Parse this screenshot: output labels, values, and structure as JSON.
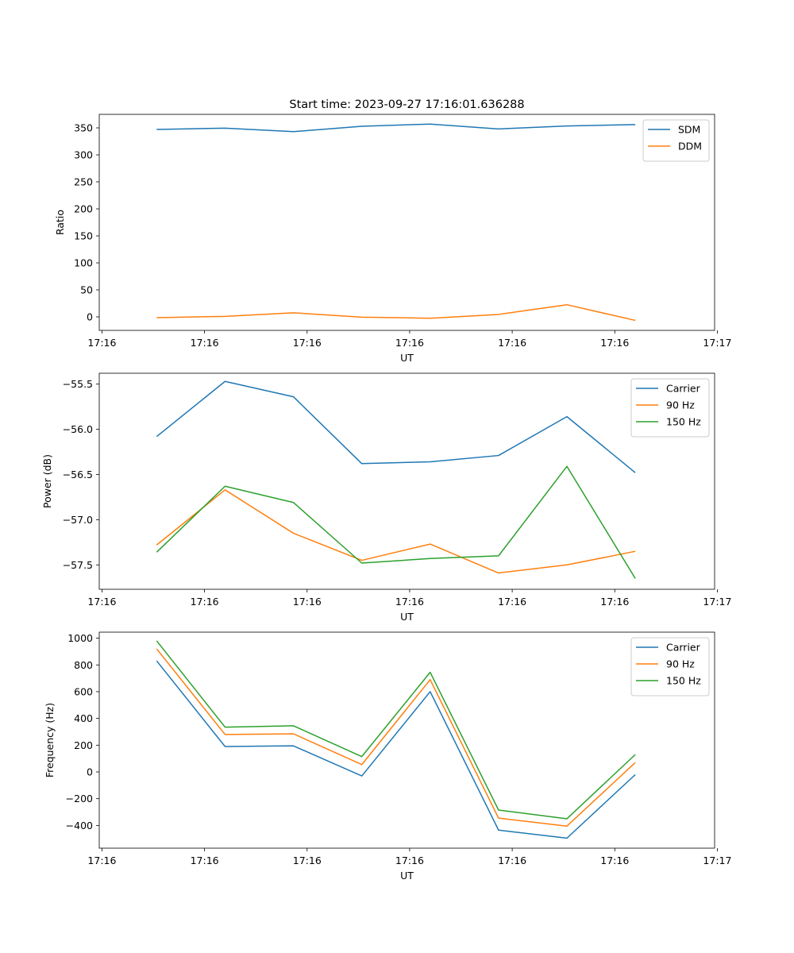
{
  "figure": {
    "title": "Start time: 2023-09-27 17:16:01.636288"
  },
  "colors": {
    "blue": "#1f77b4",
    "orange": "#ff7f0e",
    "green": "#2ca02c"
  },
  "chart_data": [
    {
      "type": "line",
      "title": "Start time: 2023-09-27 17:16:01.636288",
      "xlabel": "UT",
      "ylabel": "Ratio",
      "x": [
        1,
        2,
        3,
        4,
        5,
        6,
        7,
        8
      ],
      "xlim": [
        0.16,
        9.16
      ],
      "xticks": [
        0.2,
        1.7,
        3.2,
        4.7,
        6.2,
        7.7,
        9.2
      ],
      "xtick_labels": [
        "17:16",
        "17:16",
        "17:16",
        "17:16",
        "17:16",
        "17:16",
        "17:17"
      ],
      "ylim": [
        -25,
        375
      ],
      "yticks": [
        0,
        50,
        100,
        150,
        200,
        250,
        300,
        350
      ],
      "legend": "top-right",
      "series": [
        {
          "name": "SDM",
          "color": "#1f77b4",
          "values": [
            347,
            349.5,
            343,
            353,
            357,
            348,
            353.5,
            356
          ]
        },
        {
          "name": "DDM",
          "color": "#ff7f0e",
          "values": [
            -1.5,
            1,
            7.5,
            -0.5,
            -2.5,
            4.5,
            22.5,
            -6.5
          ]
        }
      ]
    },
    {
      "type": "line",
      "title": "",
      "xlabel": "UT",
      "ylabel": "Power (dB)",
      "x": [
        1,
        2,
        3,
        4,
        5,
        6,
        7,
        8
      ],
      "xlim": [
        0.16,
        9.16
      ],
      "xticks": [
        0.2,
        1.7,
        3.2,
        4.7,
        6.2,
        7.7,
        9.2
      ],
      "xtick_labels": [
        "17:16",
        "17:16",
        "17:16",
        "17:16",
        "17:16",
        "17:16",
        "17:17"
      ],
      "ylim": [
        -57.77,
        -55.38
      ],
      "yticks": [
        -57.5,
        -57.0,
        -56.5,
        -56.0,
        -55.5
      ],
      "ytick_labels": [
        "−57.5",
        "−57.0",
        "−56.5",
        "−56.0",
        "−55.5"
      ],
      "legend": "top-right",
      "series": [
        {
          "name": "Carrier",
          "color": "#1f77b4",
          "values": [
            -56.08,
            -55.47,
            -55.64,
            -56.38,
            -56.36,
            -56.29,
            -55.86,
            -56.48
          ]
        },
        {
          "name": "90 Hz",
          "color": "#ff7f0e",
          "values": [
            -57.28,
            -56.67,
            -57.15,
            -57.45,
            -57.27,
            -57.59,
            -57.5,
            -57.35
          ]
        },
        {
          "name": "150 Hz",
          "color": "#2ca02c",
          "values": [
            -57.36,
            -56.63,
            -56.81,
            -57.48,
            -57.43,
            -57.4,
            -56.41,
            -57.65
          ]
        }
      ]
    },
    {
      "type": "line",
      "title": "",
      "xlabel": "UT",
      "ylabel": "Frequency (Hz)",
      "x": [
        1,
        2,
        3,
        4,
        5,
        6,
        7,
        8
      ],
      "xlim": [
        0.16,
        9.16
      ],
      "xticks": [
        0.2,
        1.7,
        3.2,
        4.7,
        6.2,
        7.7,
        9.2
      ],
      "xtick_labels": [
        "17:16",
        "17:16",
        "17:16",
        "17:16",
        "17:16",
        "17:16",
        "17:17"
      ],
      "ylim": [
        -570,
        1045
      ],
      "yticks": [
        -400,
        -200,
        0,
        200,
        400,
        600,
        800,
        1000
      ],
      "ytick_labels": [
        "−400",
        "−200",
        "0",
        "200",
        "400",
        "600",
        "800",
        "1000"
      ],
      "legend": "top-right",
      "series": [
        {
          "name": "Carrier",
          "color": "#1f77b4",
          "values": [
            830,
            190,
            195,
            -30,
            600,
            -435,
            -495,
            -20
          ]
        },
        {
          "name": "90 Hz",
          "color": "#ff7f0e",
          "values": [
            920,
            280,
            285,
            55,
            690,
            -345,
            -405,
            70
          ]
        },
        {
          "name": "150 Hz",
          "color": "#2ca02c",
          "values": [
            980,
            335,
            345,
            115,
            745,
            -285,
            -350,
            130
          ]
        }
      ]
    }
  ]
}
